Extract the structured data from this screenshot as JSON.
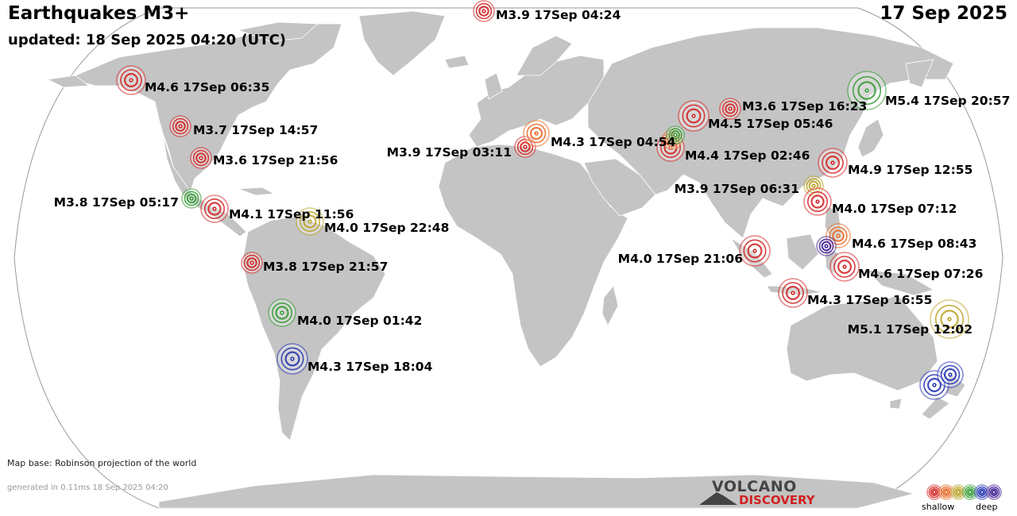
{
  "header": {
    "title": "Earthquakes M3+",
    "updated": "updated: 18 Sep 2025 04:20 (UTC)",
    "date": "17 Sep 2025"
  },
  "footer": {
    "map_base": "Map base: Robinson projection of the world",
    "generated": "generated in 0.11ms 18 Sep 2025 04:20"
  },
  "logo": {
    "line1": "VOLCANO",
    "line2": "DISCOVERY"
  },
  "legend": {
    "shallow_label": "shallow",
    "deep_label": "deep",
    "depth_colors": [
      "#d21f1f",
      "#e8641e",
      "#b8a020",
      "#2e9a2e",
      "#1f2fb0",
      "#3a1890"
    ]
  },
  "colors": {
    "land": "#c4c4c4",
    "ocean": "#ffffff",
    "border": "#ffffff",
    "outline": "#9a9a9a"
  },
  "quakes": [
    {
      "label": "M3.9 17Sep 04:24",
      "depth_color": "#d21f1f"
    },
    {
      "label": "M4.6 17Sep 06:35",
      "depth_color": "#d21f1f"
    },
    {
      "label": "M3.7 17Sep 14:57",
      "depth_color": "#d21f1f"
    },
    {
      "label": "M3.6 17Sep 21:56",
      "depth_color": "#d21f1f"
    },
    {
      "label": "M3.8 17Sep 05:17",
      "depth_color": "#2e9a2e"
    },
    {
      "label": "M4.1 17Sep 11:56",
      "depth_color": "#d21f1f"
    },
    {
      "label": "M4.0 17Sep 22:48",
      "depth_color": "#b8a020"
    },
    {
      "label": "M3.8 17Sep 21:57",
      "depth_color": "#d21f1f"
    },
    {
      "label": "M4.0 17Sep 01:42",
      "depth_color": "#2e9a2e"
    },
    {
      "label": "M4.3 17Sep 18:04",
      "depth_color": "#1f2fb0"
    },
    {
      "label": "M3.9 17Sep 03:11",
      "depth_color": "#d21f1f"
    },
    {
      "label": "M4.3 17Sep 04:54",
      "depth_color": "#e8641e"
    },
    {
      "label": "M4.4 17Sep 02:46",
      "depth_color": "#d21f1f"
    },
    {
      "label": "M4.5 17Sep 05:46",
      "depth_color": "#d21f1f"
    },
    {
      "label": "M3.6 17Sep 16:23",
      "depth_color": "#d21f1f"
    },
    {
      "label": "M5.4 17Sep 20:57",
      "depth_color": "#2e9a2e"
    },
    {
      "label": "M4.9 17Sep 12:55",
      "depth_color": "#d21f1f"
    },
    {
      "label": "M3.9 17Sep 06:31",
      "depth_color": "#b8a020"
    },
    {
      "label": "M4.0 17Sep 07:12",
      "depth_color": "#d21f1f"
    },
    {
      "label": "M4.6 17Sep 08:43",
      "depth_color": "#e8641e"
    },
    {
      "label": "M4.0 17Sep 21:06",
      "depth_color": "#d21f1f"
    },
    {
      "label": "M4.6 17Sep 07:26",
      "depth_color": "#d21f1f"
    },
    {
      "label": "M4.3 17Sep 16:55",
      "depth_color": "#d21f1f"
    },
    {
      "label": "M5.1 17Sep 12:02",
      "depth_color": "#b8a020"
    },
    {
      "label": "",
      "depth_color": "#3a1890"
    },
    {
      "label": "",
      "depth_color": "#e8641e"
    },
    {
      "label": "",
      "depth_color": "#2e9a2e"
    },
    {
      "label": "",
      "depth_color": "#1f2fb0"
    },
    {
      "label": "",
      "depth_color": "#1f2fb0"
    }
  ]
}
